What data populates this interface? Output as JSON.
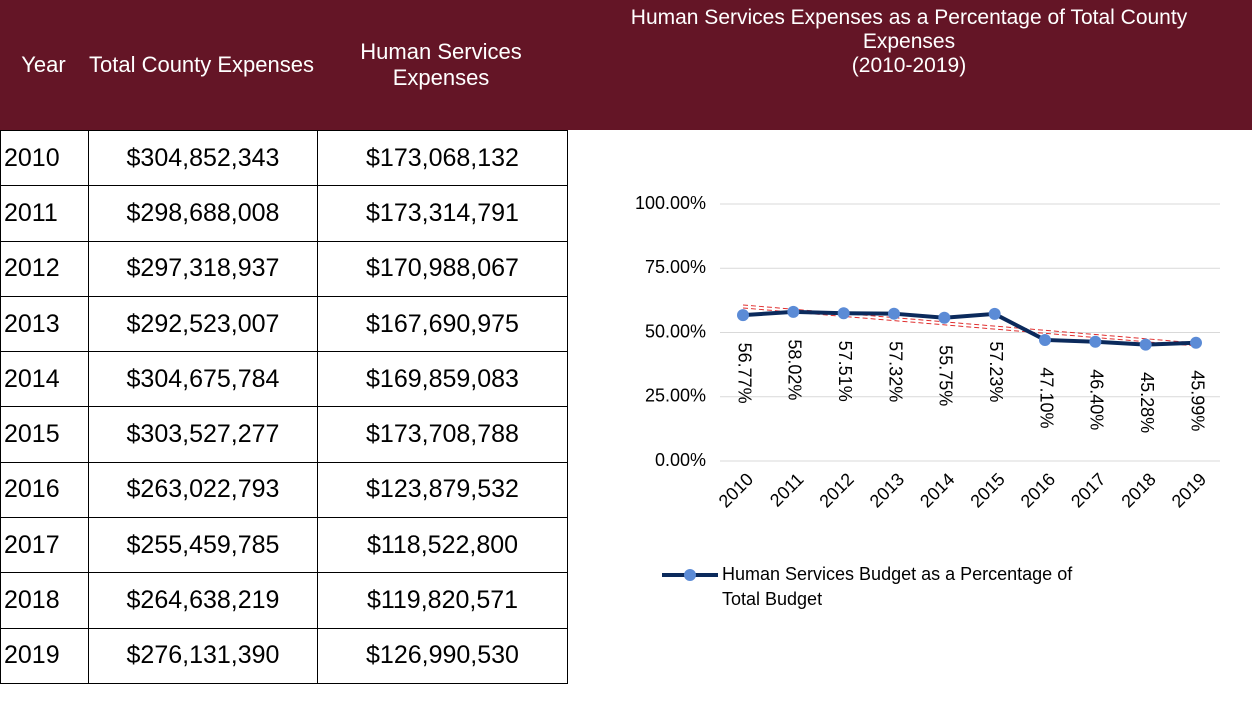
{
  "table": {
    "header": [
      "Year",
      "Total County Expenses",
      "Human Services Expenses"
    ],
    "rows": [
      [
        "2010",
        "$304,852,343",
        "$173,068,132"
      ],
      [
        "2011",
        "$298,688,008",
        "$173,314,791"
      ],
      [
        "2012",
        "$297,318,937",
        "$170,988,067"
      ],
      [
        "2013",
        "$292,523,007",
        "$167,690,975"
      ],
      [
        "2014",
        "$304,675,784",
        "$169,859,083"
      ],
      [
        "2015",
        "$303,527,277",
        "$173,708,788"
      ],
      [
        "2016",
        "$263,022,793",
        "$123,879,532"
      ],
      [
        "2017",
        "$255,459,785",
        "$118,522,800"
      ],
      [
        "2018",
        "$264,638,219",
        "$119,820,571"
      ],
      [
        "2019",
        "$276,131,390",
        "$126,990,530"
      ]
    ]
  },
  "chart_data": {
    "type": "line",
    "title": "Human Services Expenses as a Percentage of Total County Expenses",
    "subtitle": "(2010-2019)",
    "categories": [
      "2010",
      "2011",
      "2012",
      "2013",
      "2014",
      "2015",
      "2016",
      "2017",
      "2018",
      "2019"
    ],
    "series": [
      {
        "name": "Human Services Budget as a Percentage of Total Budget",
        "color": "#0b2a5c",
        "marker_color": "#5b8bd6",
        "values": [
          56.77,
          58.02,
          57.51,
          57.32,
          55.75,
          57.23,
          47.1,
          46.4,
          45.28,
          45.99
        ],
        "value_labels": [
          "56.77%",
          "58.02%",
          "57.51%",
          "57.32%",
          "55.75%",
          "57.23%",
          "47.10%",
          "46.40%",
          "45.28%",
          "45.99%"
        ]
      }
    ],
    "ylim": [
      0,
      100
    ],
    "yticks": [
      {
        "value": 0,
        "label": "0.00%"
      },
      {
        "value": 25,
        "label": "25.00%"
      },
      {
        "value": 50,
        "label": "50.00%"
      },
      {
        "value": 75,
        "label": "75.00%"
      },
      {
        "value": 100,
        "label": "100.00%"
      }
    ],
    "grid": true,
    "trendline": true,
    "trendline_color": "#e03030",
    "legend": "bottom"
  }
}
